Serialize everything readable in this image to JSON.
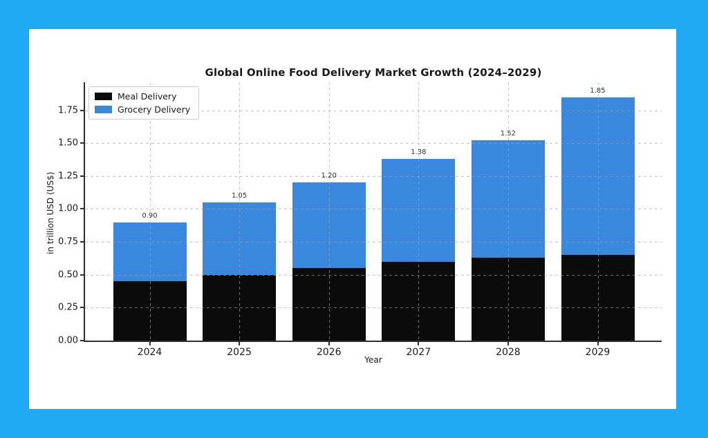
{
  "page": {
    "background_color": "#1ea9f2",
    "card_color": "#ffffff"
  },
  "chart_data": {
    "type": "bar",
    "stacked": true,
    "title": "Global Online Food Delivery Market Growth (2024–2029)",
    "xlabel": "Year",
    "ylabel": "in trillion USD (US$)",
    "categories": [
      "2024",
      "2025",
      "2026",
      "2027",
      "2028",
      "2029"
    ],
    "series": [
      {
        "name": "Meal Delivery",
        "color": "#0b0b0b",
        "values": [
          0.45,
          0.5,
          0.55,
          0.6,
          0.63,
          0.65
        ]
      },
      {
        "name": "Grocery Delivery",
        "color": "#3a87de",
        "values": [
          0.45,
          0.55,
          0.65,
          0.78,
          0.89,
          1.2
        ]
      }
    ],
    "totals": [
      0.9,
      1.05,
      1.2,
      1.38,
      1.52,
      1.85
    ],
    "total_labels": [
      "0.90",
      "1.05",
      "1.20",
      "1.38",
      "1.52",
      "1.85"
    ],
    "ytick_labels": [
      "0.00",
      "0.25",
      "0.50",
      "0.75",
      "1.00",
      "1.25",
      "1.50",
      "1.75"
    ],
    "ylim": [
      0,
      1.963
    ],
    "grid": true,
    "grid_style": "dashed",
    "legend_position": "upper-left",
    "legend_entries": [
      "Meal Delivery",
      "Grocery Delivery"
    ]
  }
}
